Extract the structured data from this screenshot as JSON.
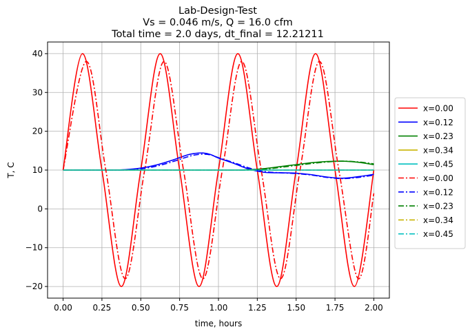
{
  "chart_data": {
    "type": "line",
    "title_lines": [
      "Lab-Design-Test",
      "Vs = 0.046 m/s, Q = 16.0 cfm",
      "Total time = 2.0 days, dt_final = 12.21211"
    ],
    "xlabel": "time, hours",
    "ylabel": "T, C",
    "xlim": [
      -0.1,
      2.1
    ],
    "ylim": [
      -23,
      43
    ],
    "xticks": [
      0,
      0.25,
      0.5,
      0.75,
      1.0,
      1.25,
      1.5,
      1.75,
      2.0
    ],
    "xtick_labels": [
      "0.00",
      "0.25",
      "0.50",
      "0.75",
      "1.00",
      "1.25",
      "1.50",
      "1.75",
      "2.00"
    ],
    "yticks": [
      -20,
      -10,
      0,
      10,
      20,
      30,
      40
    ],
    "ytick_labels": [
      "−20",
      "−10",
      "0",
      "10",
      "20",
      "30",
      "40"
    ],
    "grid": true,
    "legend_position": "outside-right",
    "series": [
      {
        "name": "x=0.00",
        "color": "#ff0000",
        "dash": "solid",
        "x": [
          0,
          0.125,
          0.25,
          0.375,
          0.5,
          0.625,
          0.75,
          0.875,
          1.0,
          1.125,
          1.25,
          1.375,
          1.5,
          1.625,
          1.75,
          1.875,
          2.0
        ],
        "y": [
          10,
          40,
          10,
          -20,
          10,
          40,
          10,
          -20,
          10,
          40,
          10,
          -20,
          10,
          40,
          10,
          -20,
          10
        ]
      },
      {
        "name": "x=0.12",
        "color": "#0000ff",
        "dash": "solid",
        "x": [
          0,
          0.1,
          0.2,
          0.3,
          0.4,
          0.5,
          0.6,
          0.7,
          0.8,
          0.85,
          0.9,
          0.95,
          1.0,
          1.1,
          1.2,
          1.3,
          1.4,
          1.5,
          1.6,
          1.7,
          1.8,
          1.9,
          2.0
        ],
        "y": [
          10,
          10,
          10,
          10,
          10.1,
          10.5,
          11.3,
          12.5,
          13.9,
          14.3,
          14.4,
          14,
          13.1,
          11.7,
          10.2,
          9.4,
          9.3,
          9.2,
          8.8,
          8.2,
          7.9,
          8.3,
          8.9
        ]
      },
      {
        "name": "x=0.23",
        "color": "#008000",
        "dash": "solid",
        "x": [
          0,
          0.5,
          1.0,
          1.1,
          1.2,
          1.3,
          1.4,
          1.5,
          1.6,
          1.7,
          1.8,
          1.9,
          2.0
        ],
        "y": [
          10,
          10,
          10,
          10,
          10.1,
          10.4,
          10.9,
          11.4,
          11.9,
          12.2,
          12.3,
          12,
          11.4
        ]
      },
      {
        "name": "x=0.34",
        "color": "#c8b400",
        "dash": "solid",
        "x": [
          0,
          0.5,
          1.0,
          1.5,
          2.0
        ],
        "y": [
          10,
          10,
          10,
          10,
          10
        ]
      },
      {
        "name": "x=0.45",
        "color": "#00bfbf",
        "dash": "solid",
        "x": [
          0,
          0.5,
          1.0,
          1.5,
          2.0
        ],
        "y": [
          10,
          10,
          10,
          10,
          10
        ]
      },
      {
        "name": "x=0.00",
        "color": "#ff0000",
        "dash": "dashdot",
        "x": [
          0,
          0.15,
          0.275,
          0.4,
          0.525,
          0.65,
          0.775,
          0.9,
          1.025,
          1.15,
          1.275,
          1.4,
          1.525,
          1.65,
          1.775,
          1.9,
          2.0
        ],
        "y": [
          10,
          38,
          10,
          -18,
          10,
          38,
          10,
          -18,
          10,
          38,
          10,
          -18,
          10,
          38,
          10,
          -18,
          4
        ]
      },
      {
        "name": "x=0.12",
        "color": "#0000ff",
        "dash": "dashdot",
        "x": [
          0,
          0.1,
          0.2,
          0.3,
          0.4,
          0.5,
          0.6,
          0.7,
          0.8,
          0.85,
          0.9,
          0.95,
          1.0,
          1.1,
          1.2,
          1.3,
          1.4,
          1.5,
          1.6,
          1.7,
          1.8,
          1.9,
          2.0
        ],
        "y": [
          10,
          10,
          10,
          10,
          10,
          10.3,
          11,
          12.1,
          13.4,
          13.9,
          14.1,
          13.9,
          13.2,
          11.9,
          10.5,
          9.6,
          9.3,
          9.1,
          8.7,
          8.1,
          7.8,
          8.1,
          8.7
        ]
      },
      {
        "name": "x=0.23",
        "color": "#008000",
        "dash": "dashdot",
        "x": [
          0,
          0.5,
          1.0,
          1.1,
          1.2,
          1.3,
          1.4,
          1.5,
          1.6,
          1.7,
          1.8,
          1.9,
          2.0
        ],
        "y": [
          10,
          10,
          10,
          10,
          10,
          10.2,
          10.7,
          11.2,
          11.7,
          12.1,
          12.3,
          12.1,
          11.6
        ]
      },
      {
        "name": "x=0.34",
        "color": "#c8b400",
        "dash": "dashdot",
        "x": [
          0,
          0.5,
          1.0,
          1.5,
          2.0
        ],
        "y": [
          10,
          10,
          10,
          10,
          10
        ]
      },
      {
        "name": "x=0.45",
        "color": "#00bfbf",
        "dash": "dashdot",
        "x": [
          0,
          0.5,
          1.0,
          1.5,
          2.0
        ],
        "y": [
          10,
          10,
          10,
          10,
          10
        ]
      }
    ]
  }
}
